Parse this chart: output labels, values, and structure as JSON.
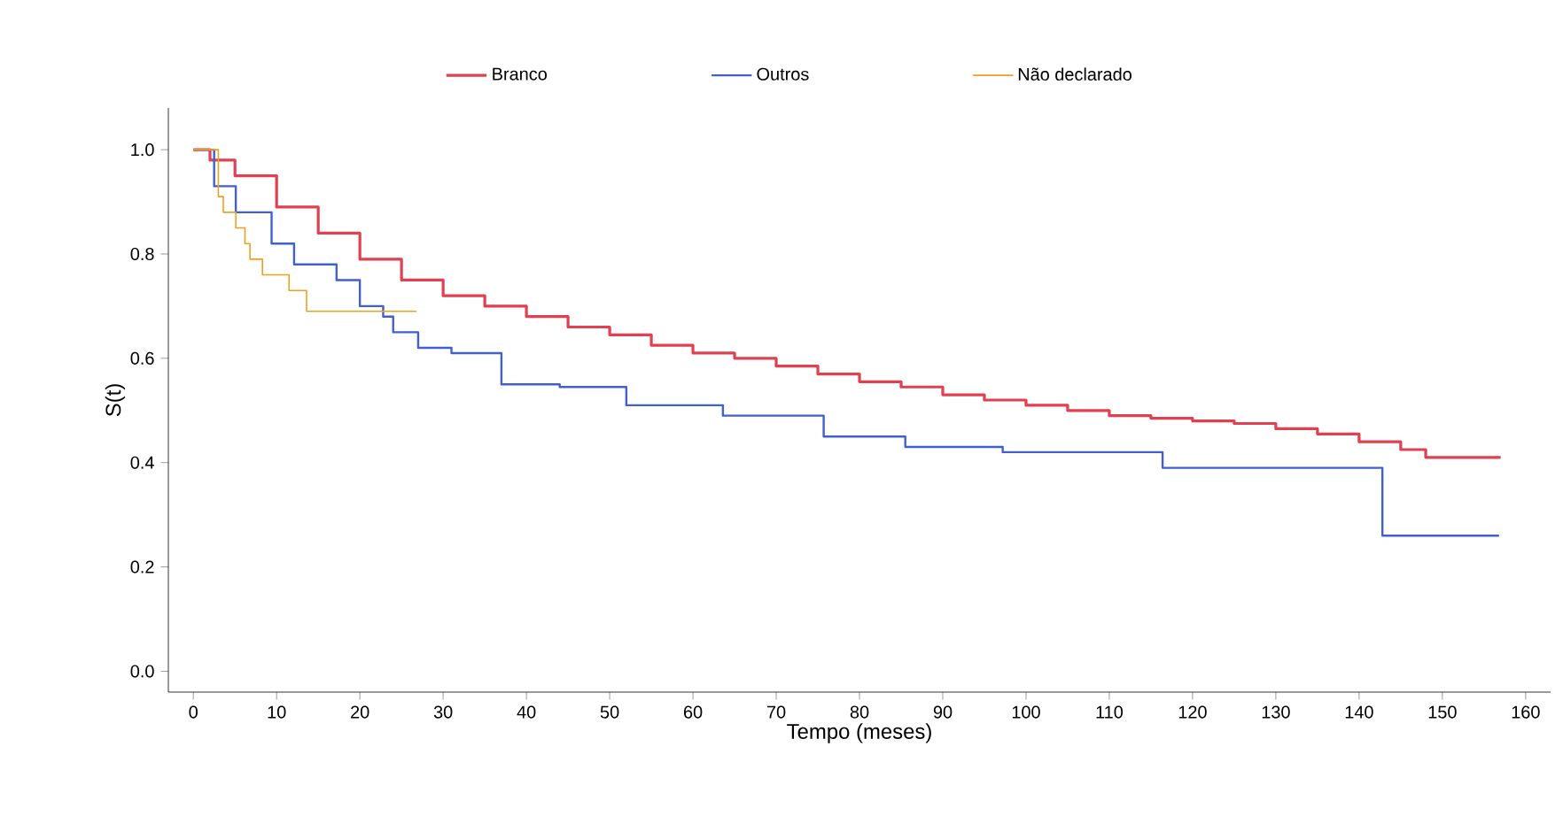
{
  "chart_data": {
    "type": "step",
    "xlabel": "Tempo (meses)",
    "ylabel": "S(t)",
    "xlim": [
      -3,
      163
    ],
    "ylim": [
      -0.04,
      1.08
    ],
    "xticks": [
      0,
      10,
      20,
      30,
      40,
      50,
      60,
      70,
      80,
      90,
      100,
      110,
      120,
      130,
      140,
      150,
      160
    ],
    "yticks": [
      {
        "value": 0,
        "label": "0.0"
      },
      {
        "value": 0.2,
        "label": "0.2"
      },
      {
        "value": 0.4,
        "label": "0.4"
      },
      {
        "value": 0.6,
        "label": "0.6"
      },
      {
        "value": 0.8,
        "label": "0.8"
      },
      {
        "value": 1,
        "label": "1.0"
      }
    ],
    "legend": "top",
    "grid": false,
    "series": [
      {
        "name": "Branco",
        "color": "#e0404f",
        "x": [
          0,
          2,
          5,
          10,
          15,
          20,
          25,
          30,
          35,
          40,
          45,
          50,
          55,
          60,
          65,
          70,
          75,
          80,
          85,
          90,
          95,
          100,
          105,
          110,
          115,
          120,
          125,
          130,
          135,
          140,
          145,
          148,
          157
        ],
        "values": [
          1,
          0.98,
          0.95,
          0.89,
          0.84,
          0.79,
          0.75,
          0.72,
          0.7,
          0.68,
          0.66,
          0.645,
          0.625,
          0.61,
          0.6,
          0.585,
          0.57,
          0.555,
          0.545,
          0.53,
          0.52,
          0.51,
          0.5,
          0.49,
          0.485,
          0.48,
          0.475,
          0.465,
          0.455,
          0.44,
          0.425,
          0.41,
          0.41
        ]
      },
      {
        "name": "Outros",
        "color": "#4060d0",
        "x": [
          0,
          2.5,
          5.1,
          9.4,
          12.1,
          17.2,
          20,
          22.8,
          24,
          27,
          31,
          37,
          44,
          52,
          63.6,
          75.7,
          85.5,
          97.2,
          116.4,
          142.8,
          156.8
        ],
        "values": [
          1,
          0.93,
          0.88,
          0.82,
          0.78,
          0.75,
          0.7,
          0.68,
          0.65,
          0.62,
          0.61,
          0.55,
          0.545,
          0.51,
          0.49,
          0.45,
          0.43,
          0.42,
          0.39,
          0.26,
          0.26
        ]
      },
      {
        "name": "Não declarado",
        "color": "#f0a020",
        "x": [
          0,
          1.5,
          3,
          3.6,
          5.1,
          6.2,
          6.8,
          8.3,
          11.5,
          13.6,
          26.8
        ],
        "values": [
          1,
          1,
          0.91,
          0.88,
          0.85,
          0.82,
          0.79,
          0.76,
          0.73,
          0.69,
          0.69
        ]
      }
    ]
  }
}
